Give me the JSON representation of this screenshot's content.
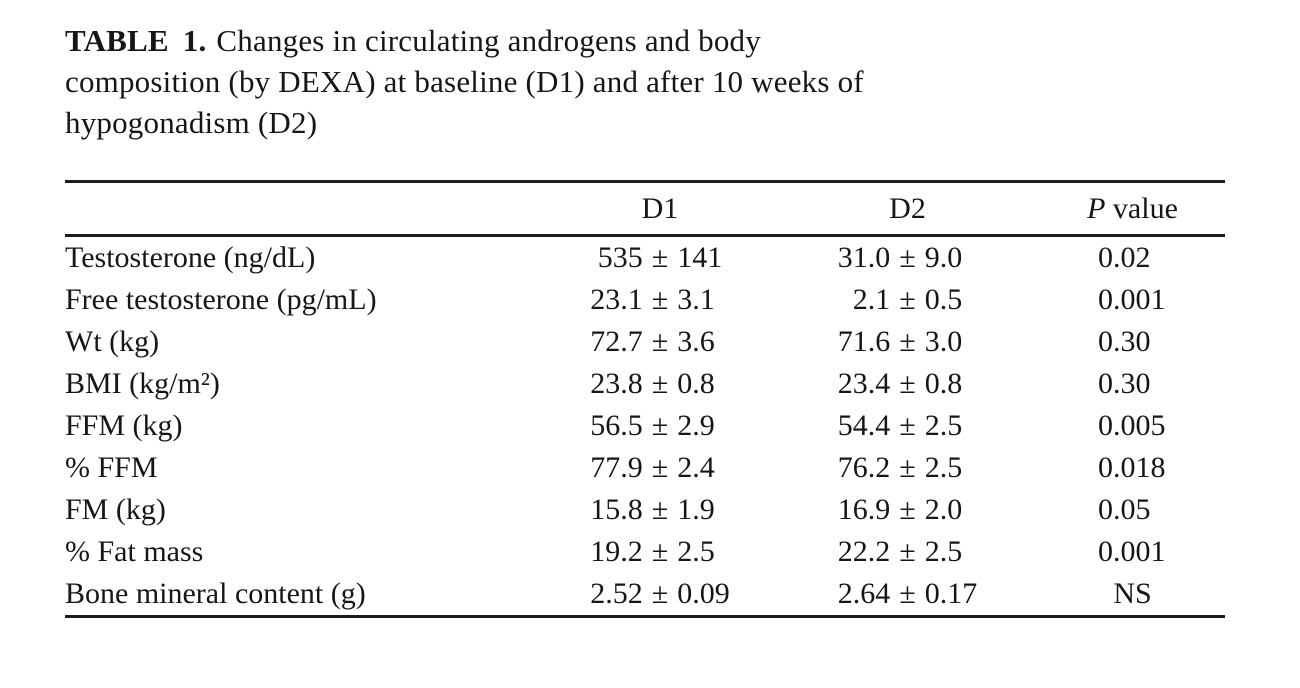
{
  "caption": {
    "label": "TABLE 1.",
    "line1": "Changes in circulating androgens and body",
    "line2": "composition (by DEXA) at baseline (D1) and after 10 weeks of",
    "line3": "hypogonadism (D2)"
  },
  "table": {
    "pm_symbol": "±",
    "header": {
      "d1": "D1",
      "d2": "D2",
      "p_italic": "P",
      "p_rest": " value"
    },
    "rows": [
      {
        "label": "Testosterone (ng/dL)",
        "d1": {
          "value": "535",
          "err": "141"
        },
        "d2": {
          "value": "31.0",
          "err": "9.0"
        },
        "p": "0.02"
      },
      {
        "label": "Free testosterone (pg/mL)",
        "d1": {
          "value": "23.1",
          "err": "3.1"
        },
        "d2": {
          "value": "2.1",
          "err": "0.5"
        },
        "p": "0.001"
      },
      {
        "label": "Wt (kg)",
        "d1": {
          "value": "72.7",
          "err": "3.6"
        },
        "d2": {
          "value": "71.6",
          "err": "3.0"
        },
        "p": "0.30"
      },
      {
        "label": "BMI (kg/m²)",
        "d1": {
          "value": "23.8",
          "err": "0.8"
        },
        "d2": {
          "value": "23.4",
          "err": "0.8"
        },
        "p": "0.30"
      },
      {
        "label": "FFM (kg)",
        "d1": {
          "value": "56.5",
          "err": "2.9"
        },
        "d2": {
          "value": "54.4",
          "err": "2.5"
        },
        "p": "0.005"
      },
      {
        "label": "% FFM",
        "d1": {
          "value": "77.9",
          "err": "2.4"
        },
        "d2": {
          "value": "76.2",
          "err": "2.5"
        },
        "p": "0.018"
      },
      {
        "label": "FM (kg)",
        "d1": {
          "value": "15.8",
          "err": "1.9"
        },
        "d2": {
          "value": "16.9",
          "err": "2.0"
        },
        "p": "0.05"
      },
      {
        "label": "% Fat mass",
        "d1": {
          "value": "19.2",
          "err": "2.5"
        },
        "d2": {
          "value": "22.2",
          "err": "2.5"
        },
        "p": "0.001"
      },
      {
        "label": "Bone mineral content (g)",
        "d1": {
          "value": "2.52",
          "err": "0.09"
        },
        "d2": {
          "value": "2.64",
          "err": "0.17"
        },
        "p": "NS"
      }
    ]
  }
}
